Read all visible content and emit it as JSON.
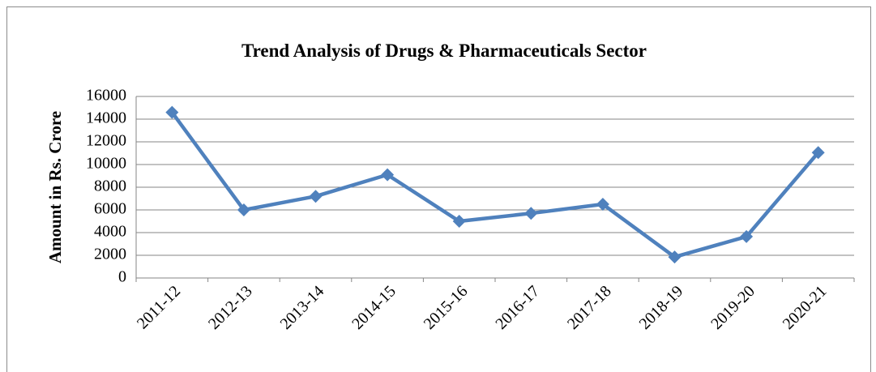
{
  "chart_data": {
    "type": "line",
    "title": "Trend Analysis of Drugs & Pharmaceuticals Sector",
    "y_label": "Amount in Rs. Crore",
    "categories": [
      "2011-12",
      "2012-13",
      "2013-14",
      "2014-15",
      "2015-16",
      "2016-17",
      "2017-18",
      "2018-19",
      "2019-20",
      "2020-21"
    ],
    "series": [
      {
        "name": "Amount",
        "color": "#4f81bd",
        "values": [
          14600,
          6000,
          7200,
          9100,
          5000,
          5700,
          6500,
          1850,
          3650,
          11050
        ]
      }
    ],
    "ylim": [
      0,
      16000
    ],
    "yticks": [
      0,
      2000,
      4000,
      6000,
      8000,
      10000,
      12000,
      14000,
      16000
    ],
    "grid": true
  }
}
